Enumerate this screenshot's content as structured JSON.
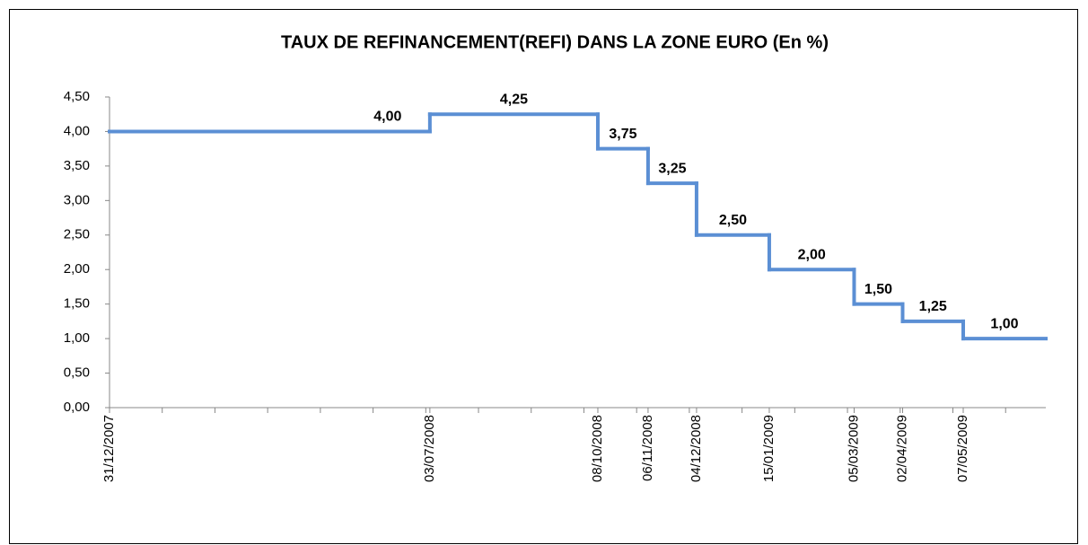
{
  "chart_data": {
    "type": "line",
    "step": true,
    "title": "TAUX DE REFINANCEMENT(REFI) DANS LA ZONE EURO (En %)",
    "x": [
      "31/12/2007",
      "03/07/2008",
      "08/10/2008",
      "06/11/2008",
      "04/12/2008",
      "15/01/2009",
      "05/03/2009",
      "02/04/2009",
      "07/05/2009"
    ],
    "series": [
      {
        "color": "#5b8fd4",
        "values": [
          4.0,
          4.25,
          3.75,
          3.25,
          2.5,
          2.0,
          1.5,
          1.25,
          1.0
        ],
        "value_labels": [
          "4,00",
          "4,25",
          "3,75",
          "3,25",
          "2,50",
          "2,00",
          "1,50",
          "1,25",
          "1,00"
        ]
      }
    ],
    "ylim": [
      0,
      4.5
    ],
    "yticks": [
      {
        "value": 0,
        "label": "0,00"
      },
      {
        "value": 0.5,
        "label": "0,50"
      },
      {
        "value": 1,
        "label": "1,00"
      },
      {
        "value": 1.5,
        "label": "1,50"
      },
      {
        "value": 2,
        "label": "2,00"
      },
      {
        "value": 2.5,
        "label": "2,50"
      },
      {
        "value": 3,
        "label": "3,00"
      },
      {
        "value": 3.5,
        "label": "3,50"
      },
      {
        "value": 4,
        "label": "4,00"
      },
      {
        "value": 4.5,
        "label": "4,50"
      }
    ]
  }
}
